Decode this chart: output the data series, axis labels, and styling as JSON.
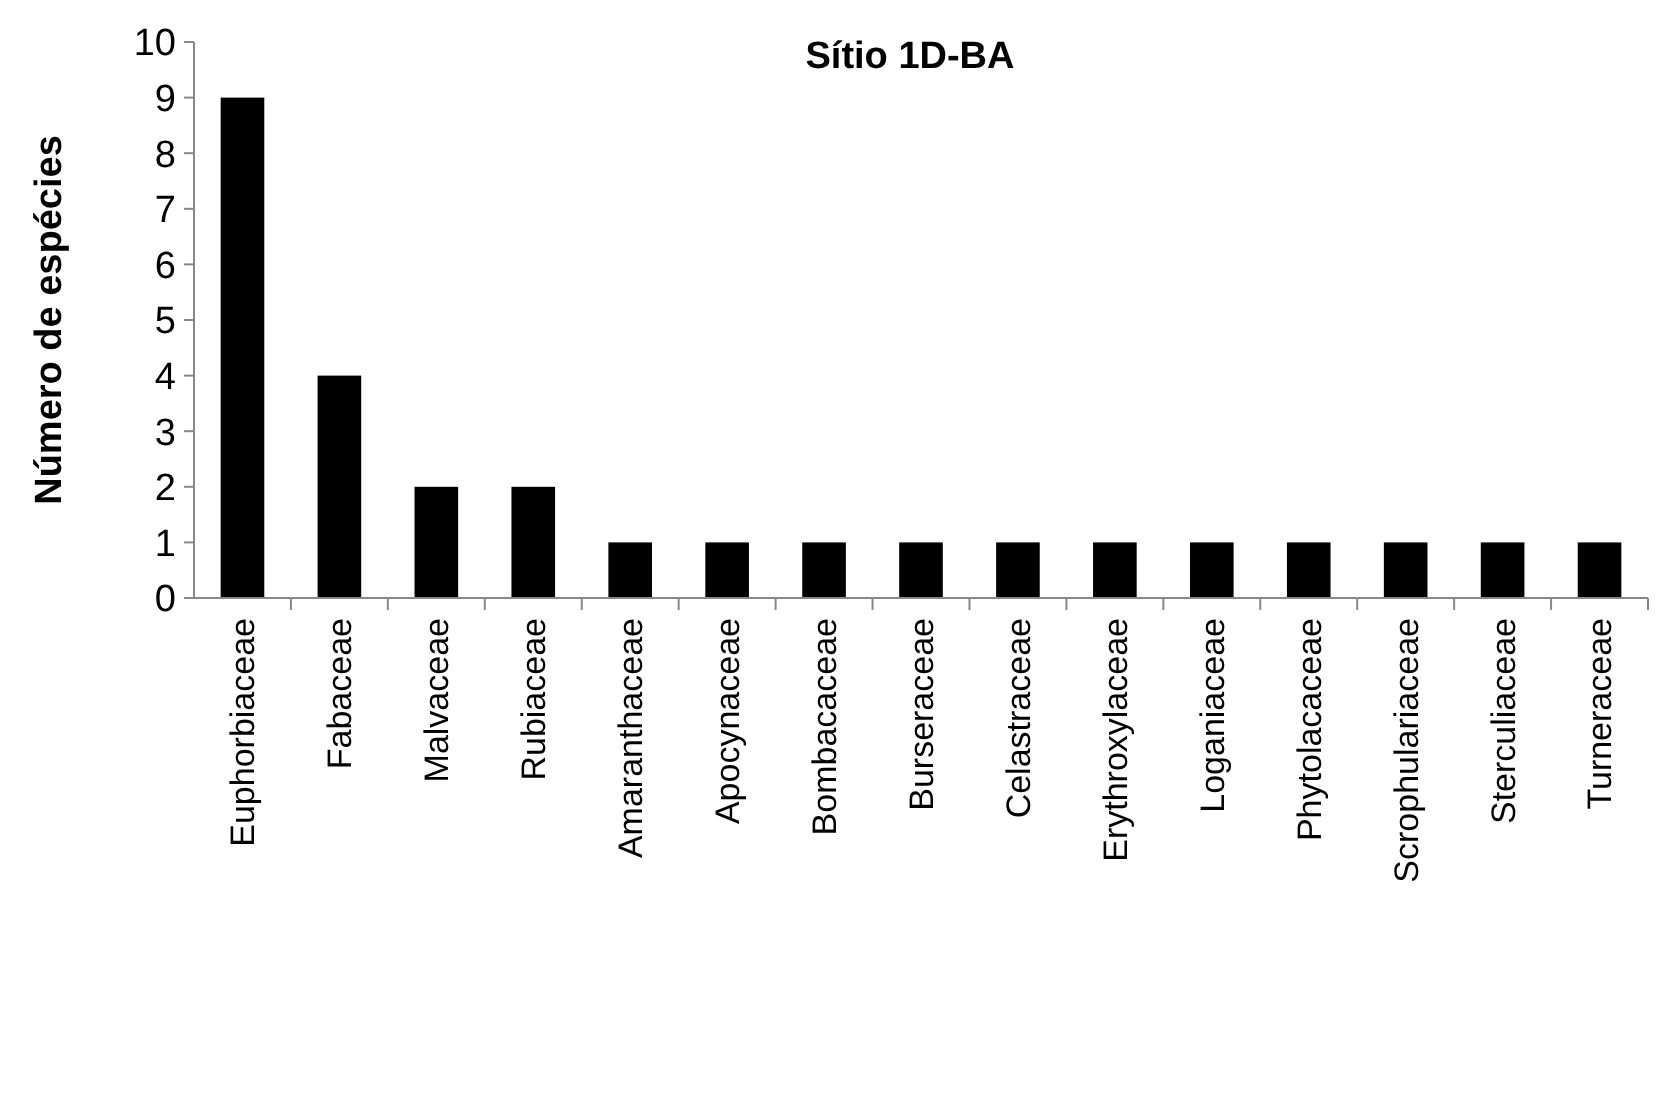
{
  "chart_data": {
    "type": "bar",
    "title": "Sítio 1D-BA",
    "ylabel": "Número de espécies",
    "categories": [
      "Euphorbiaceae",
      "Fabaceae",
      "Malvaceae",
      "Rubiaceae",
      "Amaranthaceae",
      "Apocynaceae",
      "Bombacaceae",
      "Burseraceae",
      "Celastraceae",
      "Erythroxylaceae",
      "Loganiaceae",
      "Phytolacaceae",
      "Scrophulariaceae",
      "Sterculiaceae",
      "Turneraceae"
    ],
    "values": [
      9,
      4,
      2,
      2,
      1,
      1,
      1,
      1,
      1,
      1,
      1,
      1,
      1,
      1,
      1
    ],
    "color": "#000000",
    "ylim": [
      0,
      10
    ],
    "yticks": [
      0,
      1,
      2,
      3,
      4,
      5,
      6,
      7,
      8,
      9,
      10
    ],
    "grid": false
  }
}
